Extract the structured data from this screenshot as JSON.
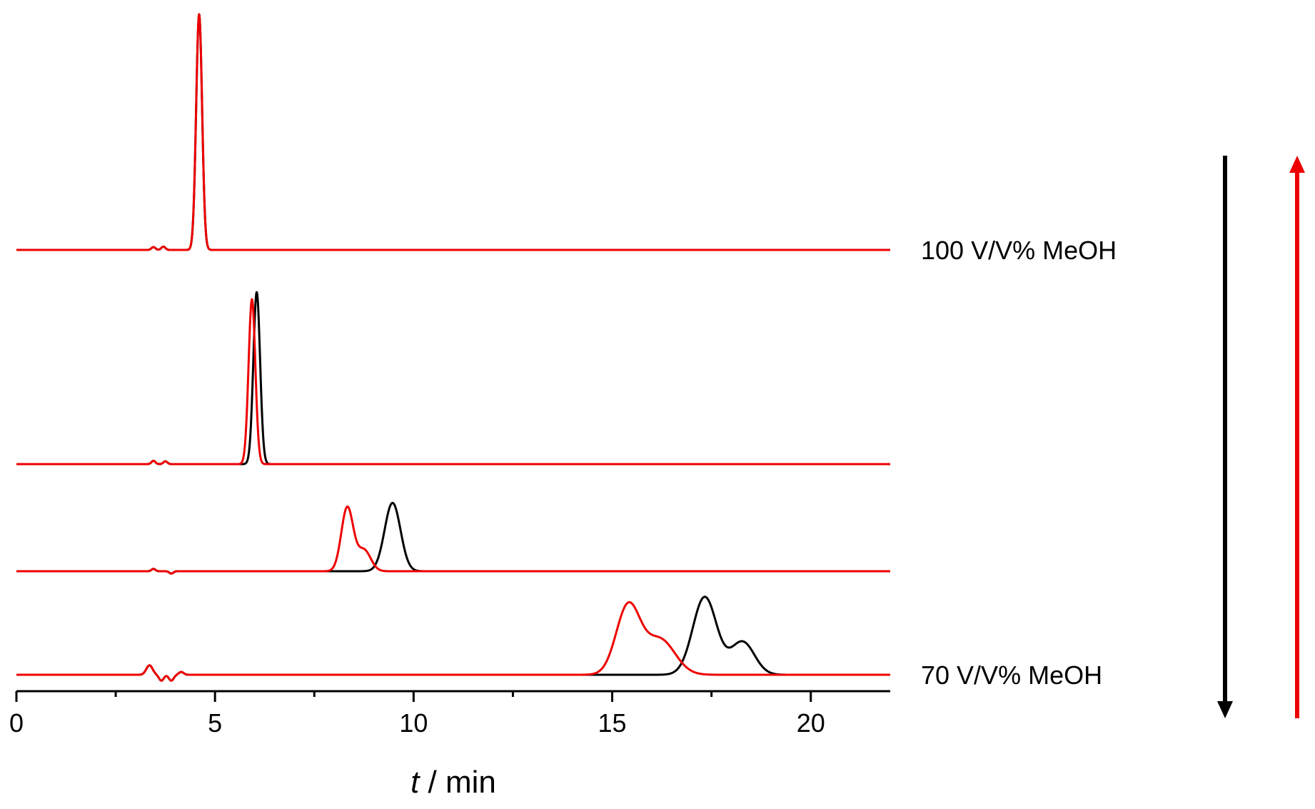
{
  "chart_data": {
    "type": "line",
    "xlabel_italic": "t",
    "xlabel_rest": " / min",
    "xlim": [
      0,
      22
    ],
    "x_ticks": [
      "0",
      "5",
      "10",
      "15",
      "20"
    ],
    "x_tick_values": [
      0,
      5,
      10,
      15,
      20
    ],
    "x_minor_step": 2.5,
    "trace_labels": [
      {
        "text": "100 V/V% MeOH",
        "trace": 0
      },
      {
        "text": "70 V/V% MeOH",
        "trace": 3
      }
    ],
    "colors": {
      "black_series": "#000000",
      "red_series": "#ee0000",
      "axis": "#000000"
    },
    "arrows": [
      {
        "color": "#000000",
        "direction": "down"
      },
      {
        "color": "#ee0000",
        "direction": "up"
      }
    ],
    "traces": [
      {
        "black": {
          "peaks": [
            [
              4.6,
              1.0,
              0.075
            ]
          ],
          "ripples": [
            [
              3.45,
              0.012,
              0.05
            ],
            [
              3.7,
              0.014,
              0.05
            ]
          ]
        },
        "red": {
          "peaks": [
            [
              4.6,
              1.0,
              0.075
            ]
          ],
          "ripples": [
            [
              3.45,
              0.012,
              0.05
            ],
            [
              3.7,
              0.014,
              0.05
            ]
          ]
        }
      },
      {
        "black": {
          "peaks": [
            [
              6.05,
              0.73,
              0.085
            ]
          ],
          "ripples": [
            [
              3.45,
              0.014,
              0.05
            ],
            [
              3.75,
              0.012,
              0.05
            ]
          ]
        },
        "red": {
          "peaks": [
            [
              5.93,
              0.7,
              0.085
            ]
          ],
          "ripples": [
            [
              3.45,
              0.014,
              0.05
            ],
            [
              3.75,
              0.012,
              0.05
            ]
          ]
        }
      },
      {
        "black": {
          "peaks": [
            [
              9.47,
              0.29,
              0.2
            ]
          ],
          "ripples": [
            [
              3.45,
              0.01,
              0.05
            ],
            [
              3.9,
              -0.01,
              0.05
            ]
          ]
        },
        "red": {
          "peaks": [
            [
              8.33,
              0.27,
              0.15
            ],
            [
              8.75,
              0.09,
              0.17
            ]
          ],
          "ripples": [
            [
              3.45,
              0.01,
              0.05
            ],
            [
              3.9,
              -0.01,
              0.05
            ]
          ]
        }
      },
      {
        "black": {
          "peaks": [
            [
              17.33,
              0.33,
              0.3
            ],
            [
              18.28,
              0.14,
              0.3
            ]
          ],
          "ripples": [
            [
              3.35,
              0.04,
              0.08
            ],
            [
              3.65,
              -0.025,
              0.06
            ],
            [
              3.9,
              -0.025,
              0.06
            ],
            [
              4.15,
              0.012,
              0.06
            ]
          ]
        },
        "red": {
          "peaks": [
            [
              15.4,
              0.29,
              0.3
            ],
            [
              16.2,
              0.15,
              0.38
            ]
          ],
          "ripples": [
            [
              3.35,
              0.04,
              0.08
            ],
            [
              3.65,
              -0.025,
              0.06
            ],
            [
              3.9,
              -0.025,
              0.06
            ],
            [
              4.15,
              0.012,
              0.06
            ]
          ]
        }
      }
    ]
  }
}
